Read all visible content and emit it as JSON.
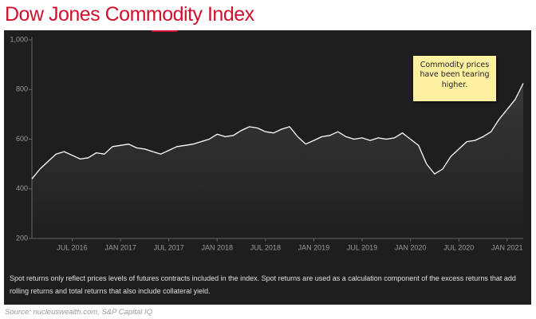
{
  "chart_data": {
    "type": "line",
    "title": "Dow Jones Commodity Index",
    "annotation": "Commodity prices have been tearing higher.",
    "footnote": "Spot returns only reflect prices levels of futures contracts included in the index. Spot returns are used as a calculation component of the excess returns that add rolling returns and total returns that also include collateral yield.",
    "source": "Source: nucleuswealth.com, S&P Capital IQ",
    "color": "#ffffff",
    "x": [
      "2016-02",
      "2016-03",
      "2016-04",
      "2016-05",
      "2016-06",
      "2016-07",
      "2016-08",
      "2016-09",
      "2016-10",
      "2016-11",
      "2016-12",
      "2017-01",
      "2017-02",
      "2017-03",
      "2017-04",
      "2017-05",
      "2017-06",
      "2017-07",
      "2017-08",
      "2017-09",
      "2017-10",
      "2017-11",
      "2017-12",
      "2018-01",
      "2018-02",
      "2018-03",
      "2018-04",
      "2018-05",
      "2018-06",
      "2018-07",
      "2018-08",
      "2018-09",
      "2018-10",
      "2018-11",
      "2018-12",
      "2019-01",
      "2019-02",
      "2019-03",
      "2019-04",
      "2019-05",
      "2019-06",
      "2019-07",
      "2019-08",
      "2019-09",
      "2019-10",
      "2019-11",
      "2019-12",
      "2020-01",
      "2020-02",
      "2020-03",
      "2020-04",
      "2020-05",
      "2020-06",
      "2020-07",
      "2020-08",
      "2020-09",
      "2020-10",
      "2020-11",
      "2020-12",
      "2021-01",
      "2021-02",
      "2021-03"
    ],
    "values": [
      440,
      480,
      510,
      540,
      550,
      535,
      520,
      525,
      545,
      540,
      570,
      575,
      580,
      565,
      560,
      550,
      540,
      555,
      570,
      575,
      580,
      590,
      600,
      620,
      610,
      615,
      635,
      650,
      645,
      630,
      625,
      640,
      650,
      610,
      580,
      595,
      610,
      615,
      630,
      610,
      600,
      605,
      595,
      605,
      600,
      605,
      625,
      600,
      575,
      500,
      460,
      480,
      530,
      560,
      590,
      595,
      610,
      630,
      680,
      720,
      760,
      825
    ],
    "xlim": [
      "2016-02",
      "2021-03"
    ],
    "xticks": [
      {
        "value": "2016-07",
        "label": "JUL 2016"
      },
      {
        "value": "2017-01",
        "label": "JAN 2017"
      },
      {
        "value": "2017-07",
        "label": "JUL 2017"
      },
      {
        "value": "2018-01",
        "label": "JAN 2018"
      },
      {
        "value": "2018-07",
        "label": "JUL 2018"
      },
      {
        "value": "2019-01",
        "label": "JAN 2019"
      },
      {
        "value": "2019-07",
        "label": "JUL 2019"
      },
      {
        "value": "2020-01",
        "label": "JAN 2020"
      },
      {
        "value": "2020-07",
        "label": "JUL 2020"
      },
      {
        "value": "2021-01",
        "label": "JAN 2021"
      }
    ],
    "ylim": [
      200,
      1000
    ],
    "yticks": [
      200,
      400,
      600,
      800,
      {
        "value": 1000,
        "label": "1,000"
      }
    ],
    "grid": false
  }
}
